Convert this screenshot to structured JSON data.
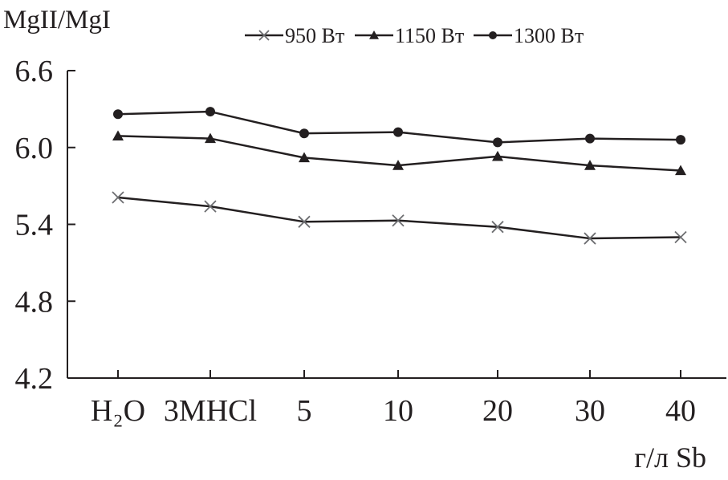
{
  "chart_data": {
    "type": "line",
    "title": "",
    "ylabel": "MgII/MgI",
    "xlabel": "г/л Sb",
    "categories": [
      "H₂O",
      "3MHCl",
      "5",
      "10",
      "20",
      "30",
      "40"
    ],
    "ylim": [
      4.2,
      6.6
    ],
    "yticks": [
      "4.2",
      "4.8",
      "5.4",
      "6.0",
      "6.6"
    ],
    "grid": false,
    "legend_position": "top",
    "series": [
      {
        "name": "950 Вт",
        "marker": "x",
        "values": [
          5.61,
          5.54,
          5.42,
          5.43,
          5.38,
          5.29,
          5.3
        ]
      },
      {
        "name": "1150 Вт",
        "marker": "triangle",
        "values": [
          6.09,
          6.07,
          5.92,
          5.86,
          5.93,
          5.86,
          5.82
        ]
      },
      {
        "name": "1300 Вт",
        "marker": "circle",
        "values": [
          6.26,
          6.28,
          6.11,
          6.12,
          6.04,
          6.07,
          6.06
        ]
      }
    ],
    "colors": {
      "line": "#231f20",
      "x_marker": "#6d6e71"
    }
  }
}
